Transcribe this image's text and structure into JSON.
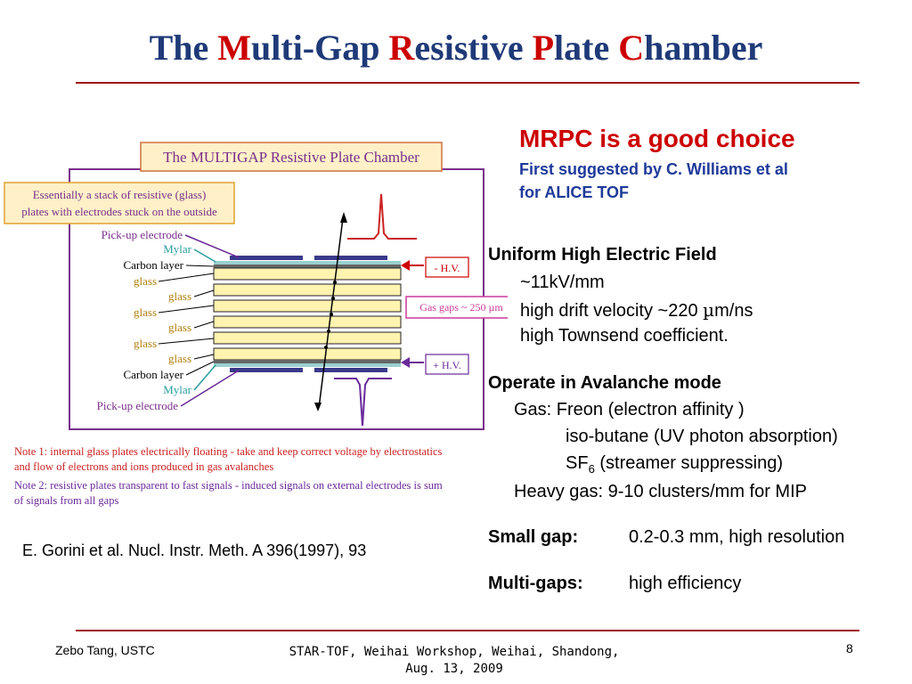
{
  "title": {
    "p1": "The ",
    "c1": "M",
    "p2": "ulti-Gap ",
    "c2": "R",
    "p3": "esistive ",
    "c3": "P",
    "p4": "late ",
    "c4": "C",
    "p5": "hamber"
  },
  "colors": {
    "title_blue": "#1f3a78",
    "accent_red": "#cc0000",
    "rule": "#a01818",
    "figure_border": "#7a2f8c",
    "box_fill": "#fff0c8",
    "glass": "#fff3b0",
    "mylar": "#2a9d9d",
    "hv": "#cc0000",
    "pickup": "#5a1a7a"
  },
  "figure": {
    "title": "The MULTIGAP Resistive Plate Chamber",
    "callout_line1": "Essentially a stack of resistive (glass)",
    "callout_line2": "plates with electrodes stuck on the outside",
    "labels": {
      "pickup_top": "Pick-up electrode",
      "mylar_top": "Mylar",
      "carbon_top": "Carbon layer",
      "glass1": "glass",
      "glass2": "glass",
      "glass3": "glass",
      "glass4": "glass",
      "glass5": "glass",
      "glass6": "glass",
      "carbon_bottom": "Carbon layer",
      "mylar_bottom": "Mylar",
      "pickup_bottom": "Pick-up electrode"
    },
    "hv_neg": "- H.V.",
    "hv_pos": "+ H.V.",
    "gas_gaps": "Gas gaps ~ 250 µm"
  },
  "notes": {
    "n1a": "Note 1: internal glass plates electrically floating - take and keep correct voltage by electrostatics",
    "n1b": "and flow of electrons and ions produced in gas avalanches",
    "n2a": "Note 2:  resistive plates transparent to fast signals - induced signals on external electrodes is sum",
    "n2b": "of signals from all gaps"
  },
  "citation": "E. Gorini et al. Nucl. Instr. Meth. A 396(1997), 93",
  "right": {
    "choice": "MRPC is a good choice",
    "suggest1": "First suggested by C. Williams et al",
    "suggest2": "for ALICE TOF",
    "uniform": "Uniform High Electric Field",
    "field": "~11kV/mm",
    "drift_pre": "high drift velocity ~220 ",
    "drift_mu": "µ",
    "drift_post": "m/ns",
    "townsend": "high Townsend coefficient.",
    "avalanche": "Operate in Avalanche mode",
    "gas": "Gas: Freon (electron affinity )",
    "isobutane": "iso-butane (UV photon absorption)",
    "sf_pre": "SF",
    "sf_sub": "6",
    "sf_post": " (streamer suppressing)",
    "heavy": "Heavy gas: 9-10 clusters/mm for MIP",
    "small_label": "Small gap:",
    "small_val": "0.2-0.3 mm, high resolution",
    "multi_label": "Multi-gaps:",
    "multi_val": "high efficiency"
  },
  "footer": {
    "author": "Zebo Tang, USTC",
    "event1": "STAR-TOF, Weihai Workshop, Weihai, Shandong,",
    "event2": "Aug. 13, 2009",
    "page": "8"
  }
}
